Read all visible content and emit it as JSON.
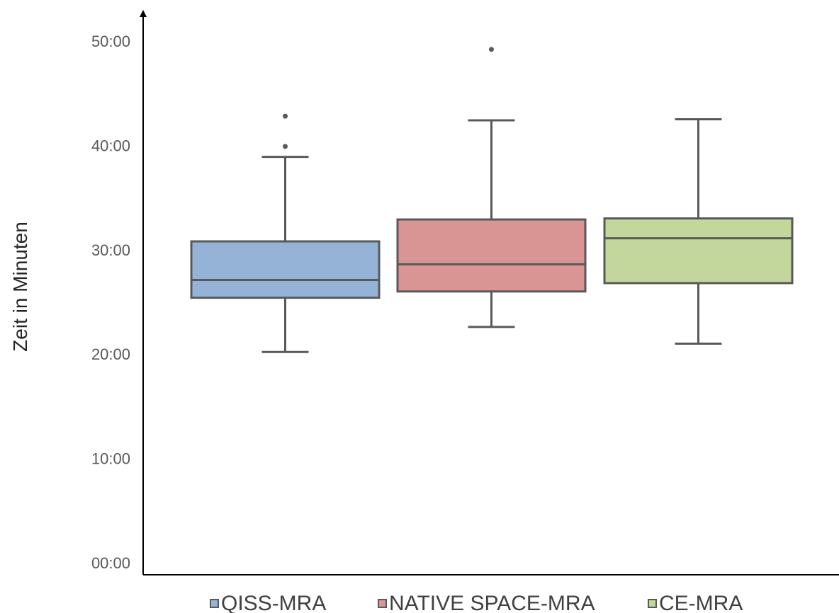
{
  "chart_data": {
    "type": "boxplot",
    "ylabel": "Zeit in Minuten",
    "yticks": [
      "00:00",
      "10:00",
      "20:00",
      "30:00",
      "40:00",
      "50:00"
    ],
    "y_unit": "minutes",
    "ylim": [
      0,
      50
    ],
    "grid": false,
    "legend_position": "bottom",
    "series": [
      {
        "name": "QISS-MRA",
        "color": "#95b3d7",
        "min": 20.2,
        "q1": 25.4,
        "median": 27.1,
        "q3": 30.8,
        "max": 38.9,
        "outliers": [
          39.9,
          42.8
        ]
      },
      {
        "name": "NATIVE SPACE-MRA",
        "color": "#d99594",
        "min": 22.6,
        "q1": 26.0,
        "median": 28.6,
        "q3": 32.9,
        "max": 42.4,
        "outliers": [
          49.2
        ]
      },
      {
        "name": "CE-MRA",
        "color": "#c3d69b",
        "min": 21.0,
        "q1": 26.8,
        "median": 31.1,
        "q3": 33.0,
        "max": 42.5,
        "outliers": []
      }
    ],
    "stroke_color": "#595959"
  }
}
